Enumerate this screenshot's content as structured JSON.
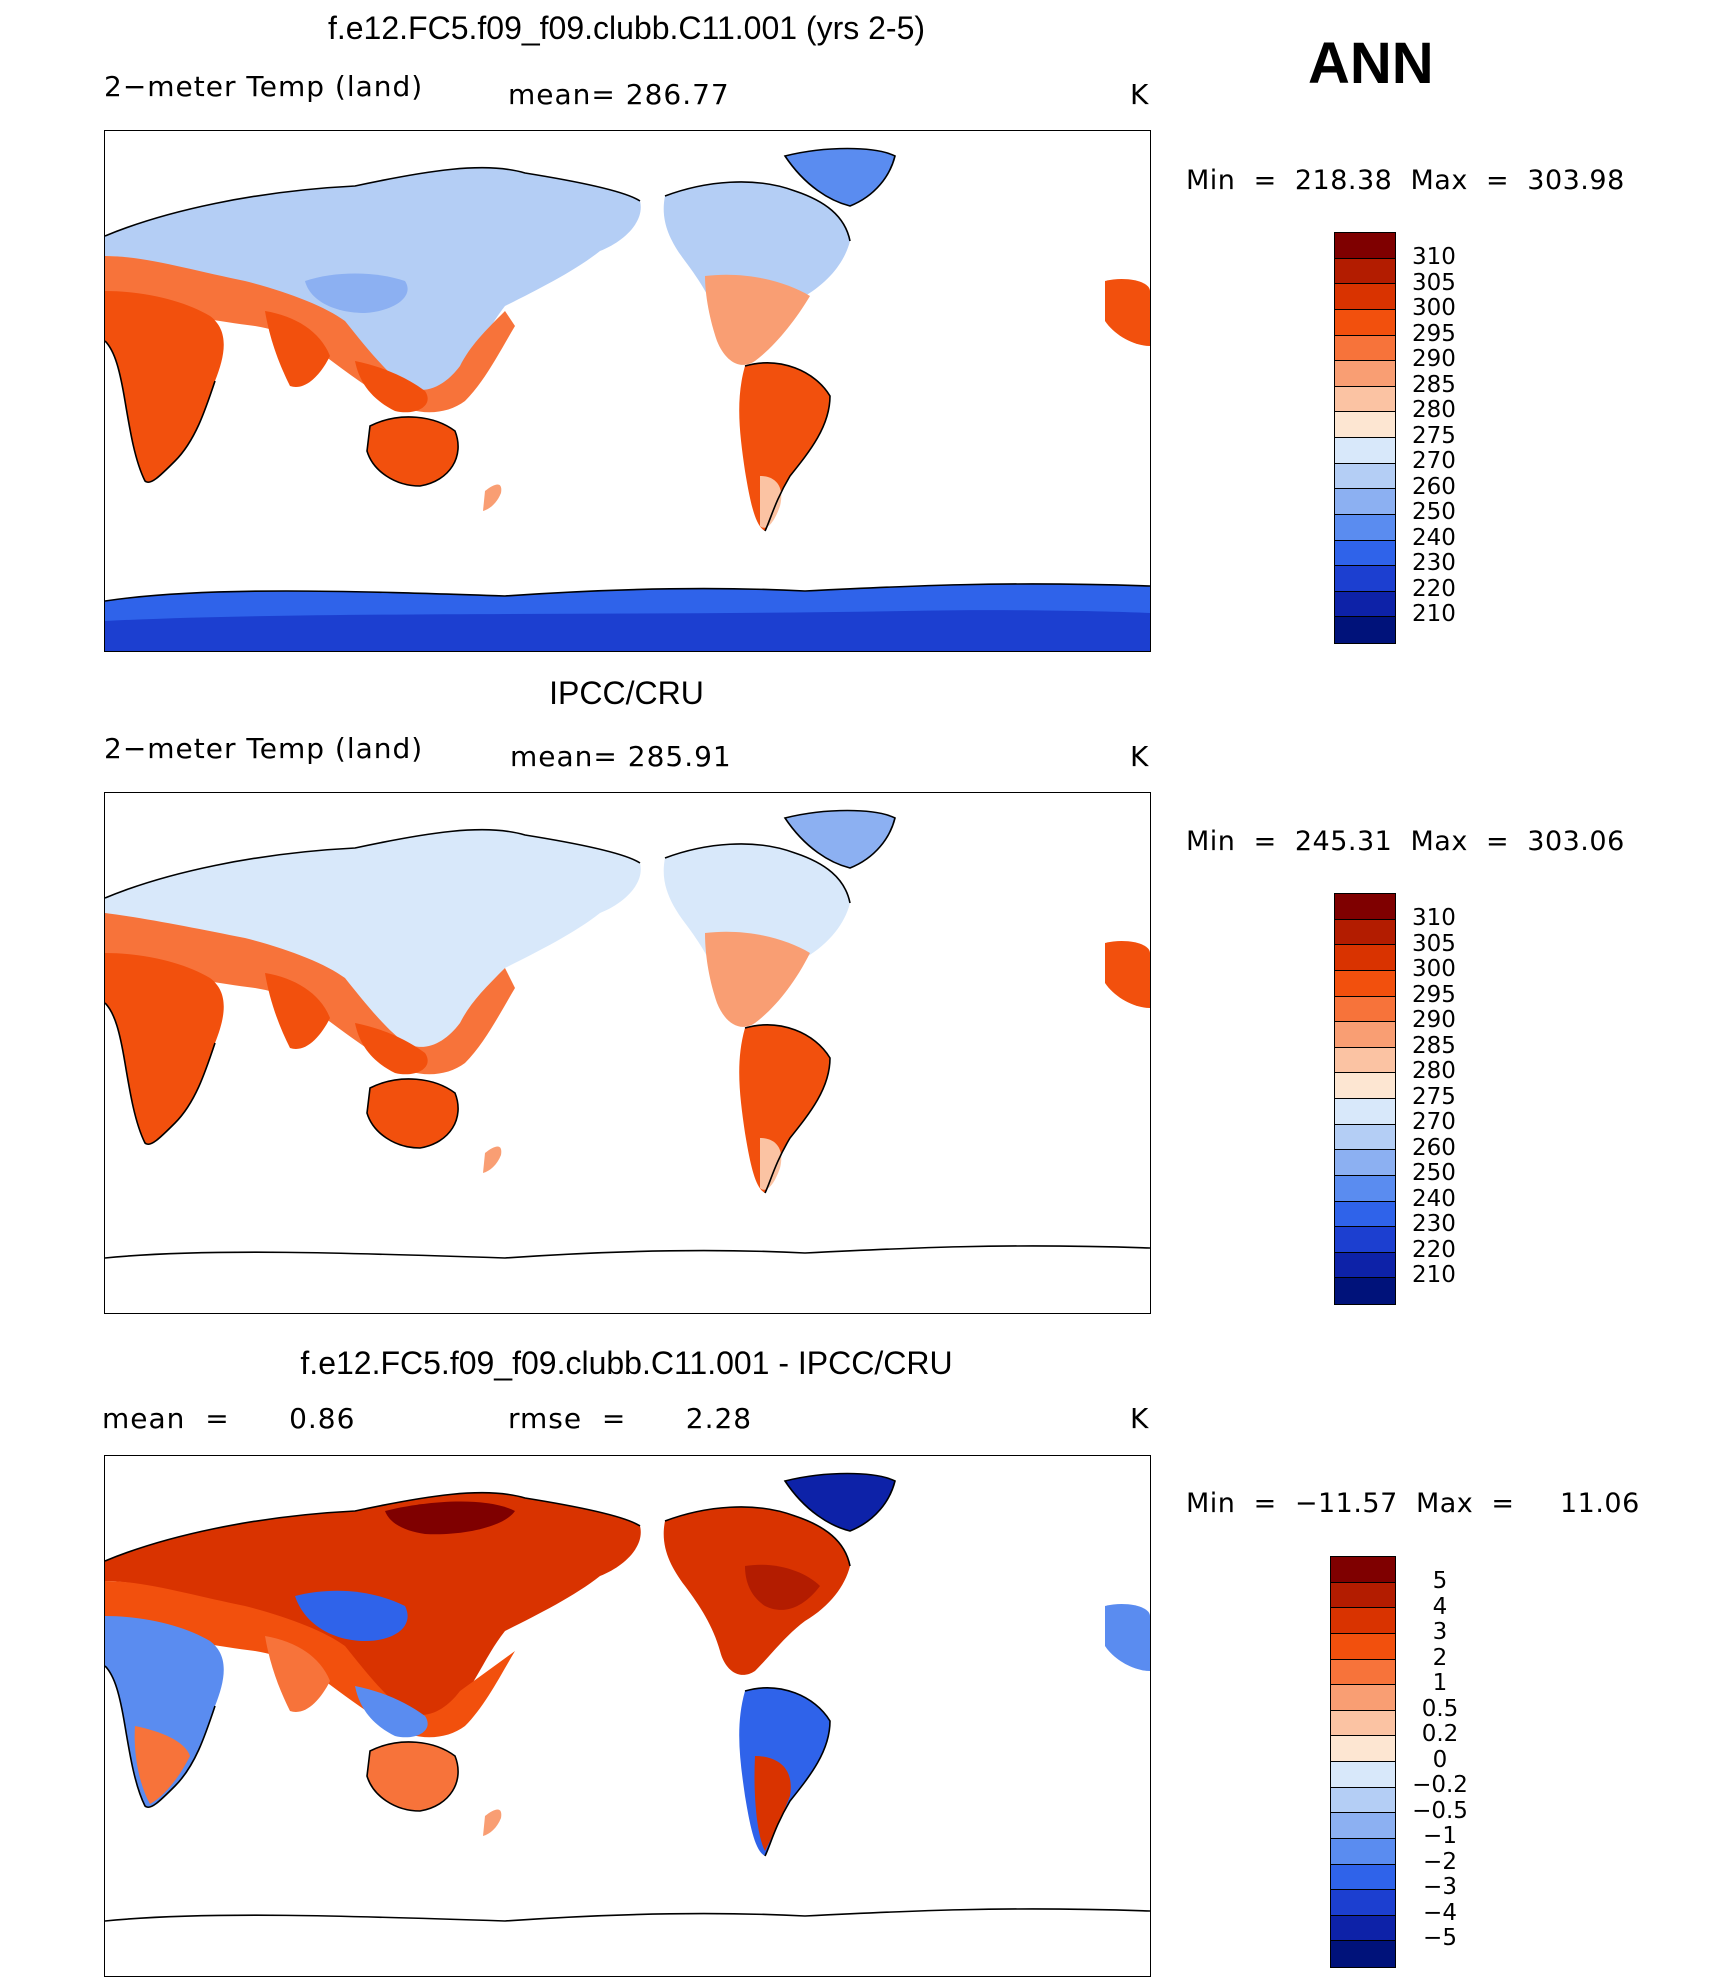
{
  "season": "ANN",
  "panels": [
    {
      "title": "f.e12.FC5.f09_f09.clubb.C11.001 (yrs 2-5)",
      "left_label": "2−meter Temp (land)",
      "mid_label": "mean=  286.77",
      "units": "K",
      "minmax": "Min  =  218.38  Max  =  303.98",
      "colorbar_labels": [
        "310",
        "305",
        "300",
        "295",
        "290",
        "285",
        "280",
        "275",
        "270",
        "260",
        "250",
        "240",
        "230",
        "220",
        "210"
      ]
    },
    {
      "title": "IPCC/CRU",
      "left_label": "2−meter Temp (land)",
      "mid_label": "mean=  285.91",
      "units": "K",
      "minmax": "Min  =  245.31  Max  =  303.06",
      "colorbar_labels": [
        "310",
        "305",
        "300",
        "295",
        "290",
        "285",
        "280",
        "275",
        "270",
        "260",
        "250",
        "240",
        "230",
        "220",
        "210"
      ]
    },
    {
      "title": "f.e12.FC5.f09_f09.clubb.C11.001 - IPCC/CRU",
      "left_label": "mean  =      0.86",
      "mid_label": "rmse  =      2.28",
      "units": "K",
      "minmax": "Min  =  −11.57  Max  =     11.06",
      "colorbar_labels": [
        "5",
        "4",
        "3",
        "2",
        "1",
        "0.5",
        "0.2",
        "0",
        "−0.2",
        "−0.5",
        "−1",
        "−2",
        "−3",
        "−4",
        "−5"
      ]
    }
  ],
  "colors": {
    "abs_scale": [
      "#7f0000",
      "#b31c00",
      "#d93300",
      "#f2500d",
      "#f7733a",
      "#f99e73",
      "#fbc3a3",
      "#fde6d2",
      "#d8e8fa",
      "#b4cef5",
      "#8cb0f2",
      "#5a8cf0",
      "#2f63ea",
      "#1c3fd0",
      "#0d22a8",
      "#00127a"
    ],
    "diff_scale": [
      "#7f0000",
      "#b31c00",
      "#d93300",
      "#f2500d",
      "#f7733a",
      "#f99e73",
      "#fbc3a3",
      "#fde6d2",
      "#d8e8fa",
      "#b4cef5",
      "#8cb0f2",
      "#5a8cf0",
      "#2f63ea",
      "#1c3fd0",
      "#0d22a8",
      "#00127a"
    ]
  }
}
